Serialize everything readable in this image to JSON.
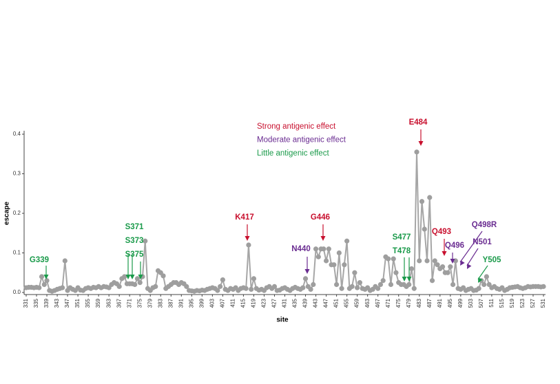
{
  "chart_data": {
    "type": "line",
    "x_label": "site",
    "y_label": "escape",
    "legend": [
      {
        "text": "Strong antigenic effect",
        "color": "#c8102e"
      },
      {
        "text": "Moderate antigenic effect",
        "color": "#6a2c91"
      },
      {
        "text": "Little antigenic effect",
        "color": "#1a9a4a"
      }
    ],
    "annotations": [
      {
        "text": "G339",
        "color": "#1a9a4a"
      },
      {
        "text": "S371",
        "color": "#1a9a4a"
      },
      {
        "text": "S373",
        "color": "#1a9a4a"
      },
      {
        "text": "S375",
        "color": "#1a9a4a"
      },
      {
        "text": "K417",
        "color": "#c8102e"
      },
      {
        "text": "N440",
        "color": "#6a2c91"
      },
      {
        "text": "G446",
        "color": "#c8102e"
      },
      {
        "text": "S477",
        "color": "#1a9a4a"
      },
      {
        "text": "T478",
        "color": "#1a9a4a"
      },
      {
        "text": "E484",
        "color": "#c8102e"
      },
      {
        "text": "Q493",
        "color": "#c8102e"
      },
      {
        "text": "Q496",
        "color": "#6a2c91"
      },
      {
        "text": "Q498R",
        "color": "#6a2c91"
      },
      {
        "text": "N501",
        "color": "#6a2c91"
      },
      {
        "text": "Y505",
        "color": "#1a9a4a"
      }
    ],
    "x": [
      331,
      332,
      333,
      334,
      335,
      336,
      337,
      338,
      339,
      340,
      341,
      342,
      343,
      344,
      345,
      346,
      347,
      348,
      349,
      350,
      351,
      352,
      353,
      354,
      355,
      356,
      357,
      358,
      359,
      360,
      361,
      362,
      363,
      364,
      365,
      366,
      367,
      368,
      369,
      370,
      371,
      372,
      373,
      374,
      375,
      376,
      377,
      378,
      379,
      380,
      381,
      382,
      383,
      384,
      385,
      386,
      387,
      388,
      389,
      390,
      391,
      392,
      393,
      394,
      395,
      396,
      397,
      398,
      399,
      400,
      401,
      402,
      403,
      404,
      405,
      406,
      407,
      408,
      409,
      410,
      411,
      412,
      413,
      414,
      415,
      416,
      417,
      418,
      419,
      420,
      421,
      422,
      423,
      424,
      425,
      426,
      427,
      428,
      429,
      430,
      431,
      432,
      433,
      434,
      435,
      436,
      437,
      438,
      439,
      440,
      441,
      442,
      443,
      444,
      445,
      446,
      447,
      448,
      449,
      450,
      451,
      452,
      453,
      454,
      455,
      456,
      457,
      458,
      459,
      460,
      461,
      462,
      463,
      464,
      465,
      466,
      467,
      468,
      469,
      470,
      471,
      472,
      473,
      474,
      475,
      476,
      477,
      478,
      479,
      480,
      481,
      482,
      483,
      484,
      485,
      486,
      487,
      488,
      489,
      490,
      491,
      492,
      493,
      494,
      495,
      496,
      497,
      498,
      499,
      500,
      501,
      502,
      503,
      504,
      505,
      506,
      507,
      508,
      509,
      510,
      511,
      512,
      513,
      514,
      515,
      516,
      517,
      518,
      519,
      520,
      521,
      522,
      523,
      524,
      525,
      526,
      527,
      528,
      529,
      530,
      531
    ],
    "series": [
      {
        "name": "escape",
        "color": "#a6a6a6",
        "values": [
          0.012,
          0.013,
          0.013,
          0.012,
          0.013,
          0.012,
          0.04,
          0.02,
          0.03,
          0.005,
          0.003,
          0.005,
          0.008,
          0.01,
          0.012,
          0.08,
          0.005,
          0.012,
          0.008,
          0.005,
          0.012,
          0.006,
          0.005,
          0.01,
          0.012,
          0.01,
          0.013,
          0.012,
          0.015,
          0.012,
          0.015,
          0.014,
          0.012,
          0.02,
          0.025,
          0.022,
          0.015,
          0.035,
          0.04,
          0.022,
          0.022,
          0.022,
          0.02,
          0.035,
          0.025,
          0.04,
          0.13,
          0.01,
          0.005,
          0.012,
          0.015,
          0.055,
          0.05,
          0.042,
          0.01,
          0.015,
          0.02,
          0.025,
          0.025,
          0.02,
          0.025,
          0.022,
          0.015,
          0.005,
          0.004,
          0.003,
          0.005,
          0.004,
          0.006,
          0.005,
          0.008,
          0.01,
          0.012,
          0.01,
          0.005,
          0.015,
          0.032,
          0.008,
          0.005,
          0.01,
          0.008,
          0.012,
          0.005,
          0.01,
          0.012,
          0.01,
          0.12,
          0.008,
          0.035,
          0.01,
          0.006,
          0.008,
          0.005,
          0.012,
          0.015,
          0.01,
          0.015,
          0.005,
          0.006,
          0.01,
          0.012,
          0.008,
          0.005,
          0.01,
          0.013,
          0.01,
          0.008,
          0.012,
          0.035,
          0.015,
          0.008,
          0.02,
          0.11,
          0.09,
          0.11,
          0.11,
          0.08,
          0.11,
          0.07,
          0.07,
          0.02,
          0.1,
          0.01,
          0.07,
          0.13,
          0.01,
          0.015,
          0.05,
          0.012,
          0.025,
          0.01,
          0.008,
          0.012,
          0.005,
          0.008,
          0.015,
          0.01,
          0.02,
          0.03,
          0.09,
          0.085,
          0.02,
          0.085,
          0.05,
          0.025,
          0.02,
          0.02,
          0.015,
          0.02,
          0.06,
          0.01,
          0.355,
          0.08,
          0.23,
          0.16,
          0.08,
          0.24,
          0.03,
          0.08,
          0.07,
          0.06,
          0.065,
          0.05,
          0.05,
          0.065,
          0.02,
          0.08,
          0.01,
          0.008,
          0.012,
          0.005,
          0.008,
          0.01,
          0.005,
          0.006,
          0.01,
          0.03,
          0.02,
          0.04,
          0.02,
          0.012,
          0.015,
          0.01,
          0.008,
          0.012,
          0.005,
          0.008,
          0.012,
          0.013,
          0.014,
          0.015,
          0.012,
          0.01,
          0.012,
          0.015,
          0.014,
          0.015,
          0.015,
          0.015,
          0.014,
          0.015
        ]
      }
    ],
    "xlim": [
      331,
      531
    ],
    "xticks": [
      331,
      335,
      339,
      343,
      347,
      351,
      355,
      359,
      363,
      367,
      371,
      375,
      379,
      383,
      387,
      391,
      395,
      399,
      403,
      407,
      411,
      415,
      419,
      423,
      427,
      431,
      435,
      439,
      443,
      447,
      451,
      455,
      459,
      463,
      467,
      471,
      475,
      479,
      483,
      487,
      491,
      495,
      499,
      503,
      507,
      511,
      515,
      519,
      523,
      527,
      531
    ],
    "ylim": [
      0,
      0.4
    ],
    "yticks": [
      {
        "value": 0,
        "label": "0.0"
      },
      0.1,
      0.2,
      0.3,
      0.4
    ]
  }
}
